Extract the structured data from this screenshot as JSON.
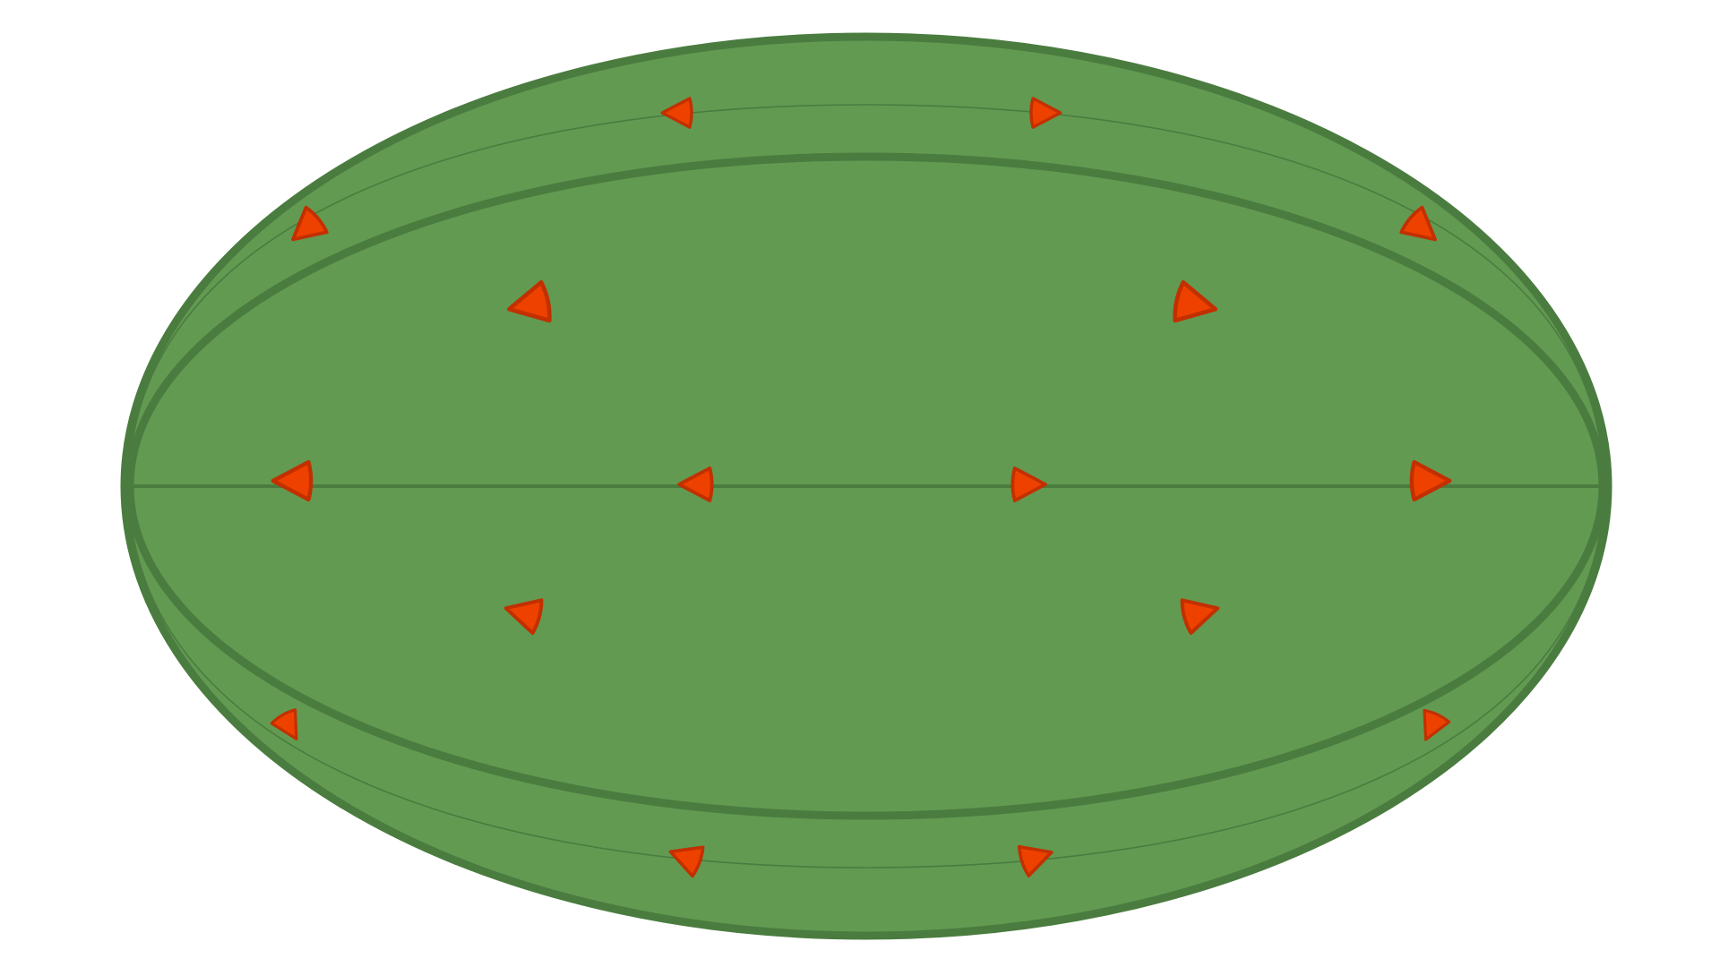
{
  "diagram": {
    "colors": {
      "background": "#ffffff",
      "body_fill": "#629a52",
      "outline": "#4a7c3f",
      "arrow_fill": "#ee4100",
      "arrow_stroke": "#c23000"
    },
    "paths": [
      {
        "name": "outer-boundary",
        "style": "thick",
        "shape": "ellipse"
      },
      {
        "name": "inner-loop",
        "style": "thick",
        "shape": "ellipse"
      },
      {
        "name": "upper-thin-arc",
        "style": "thin",
        "shape": "arc"
      },
      {
        "name": "lower-thin-arc",
        "style": "thin",
        "shape": "arc"
      },
      {
        "name": "equator-line",
        "style": "medium",
        "shape": "line"
      }
    ],
    "arrows": [
      {
        "name": "arrow-top-left",
        "direction": "left",
        "path": "upper-thin-arc"
      },
      {
        "name": "arrow-top-right",
        "direction": "right",
        "path": "upper-thin-arc"
      },
      {
        "name": "arrow-upper-far-left",
        "direction": "down-left",
        "path": "upper-thin-arc"
      },
      {
        "name": "arrow-upper-far-right",
        "direction": "down-right",
        "path": "upper-thin-arc"
      },
      {
        "name": "arrow-inner-upper-left",
        "direction": "left",
        "path": "interior"
      },
      {
        "name": "arrow-inner-upper-right",
        "direction": "right",
        "path": "interior"
      },
      {
        "name": "arrow-equator-far-left",
        "direction": "left",
        "path": "equator-line"
      },
      {
        "name": "arrow-equator-left",
        "direction": "left",
        "path": "equator-line"
      },
      {
        "name": "arrow-equator-right",
        "direction": "right",
        "path": "equator-line"
      },
      {
        "name": "arrow-equator-far-right",
        "direction": "right",
        "path": "equator-line"
      },
      {
        "name": "arrow-inner-lower-left",
        "direction": "left",
        "path": "interior"
      },
      {
        "name": "arrow-inner-lower-right",
        "direction": "right",
        "path": "interior"
      },
      {
        "name": "arrow-lower-far-left",
        "direction": "down",
        "path": "lower-thin-arc"
      },
      {
        "name": "arrow-lower-far-right",
        "direction": "down",
        "path": "lower-thin-arc"
      },
      {
        "name": "arrow-bottom-left",
        "direction": "left",
        "path": "lower-thin-arc"
      },
      {
        "name": "arrow-bottom-right",
        "direction": "right",
        "path": "lower-thin-arc"
      }
    ]
  }
}
